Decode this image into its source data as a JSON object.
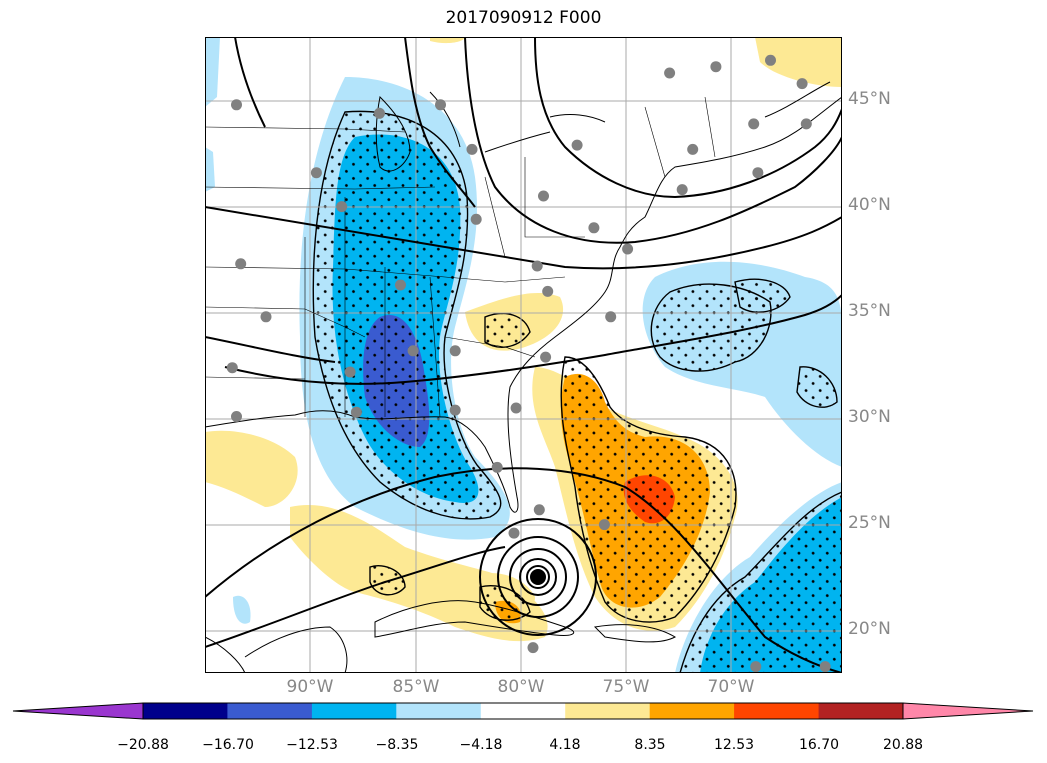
{
  "title": "2017090912 F000",
  "colors": {
    "purple": "#9a36cf",
    "navy": "#00008b",
    "royal_blue": "#3a5bd0",
    "deep_sky": "#00b4f0",
    "light_blue": "#b3e4fb",
    "white": "#ffffff",
    "pale_yellow": "#fde994",
    "orange": "#ffa500",
    "red_orange": "#ff4500",
    "firebrick": "#b22222",
    "pink": "#ff87a9",
    "station_marker": "#808080",
    "contour_line": "#000000",
    "gridline": "#aaaaaa"
  },
  "lat_labels": [
    "45°N",
    "40°N",
    "35°N",
    "30°N",
    "25°N",
    "20°N"
  ],
  "lon_labels": [
    "90°W",
    "85°W",
    "80°W",
    "75°W",
    "70°W"
  ],
  "colorbar_ticks": [
    "−20.88",
    "−16.70",
    "−12.53",
    "−8.35",
    "−4.18",
    "4.18",
    "8.35",
    "12.53",
    "16.70",
    "20.88"
  ],
  "colorbar_segment_colors": [
    "#00008b",
    "#3a5bd0",
    "#00b4f0",
    "#b3e4fb",
    "#ffffff",
    "#fde994",
    "#ffa500",
    "#ff4500",
    "#b22222"
  ],
  "colorbar_extend_colors": {
    "low": "#9a36cf",
    "high": "#ff87a9"
  },
  "map_extent": {
    "lon_min": -96.5,
    "lon_max": -66.2,
    "lat_min": 18,
    "lat_max": 48
  },
  "station_markers": [
    [
      -95,
      44.8
    ],
    [
      -88.2,
      44.4
    ],
    [
      -85.3,
      44.8
    ],
    [
      -83.8,
      42.7
    ],
    [
      -91.2,
      41.6
    ],
    [
      -90,
      40
    ],
    [
      -83.6,
      39.4
    ],
    [
      -80.4,
      40.5
    ],
    [
      -78,
      39
    ],
    [
      -76.4,
      38
    ],
    [
      -80.7,
      37.2
    ],
    [
      -94.8,
      37.3
    ],
    [
      -87.2,
      36.3
    ],
    [
      -80.2,
      36
    ],
    [
      -77.2,
      34.8
    ],
    [
      -93.6,
      34.8
    ],
    [
      -95.2,
      32.4
    ],
    [
      -89.6,
      32.2
    ],
    [
      -86.6,
      33.2
    ],
    [
      -84.6,
      33.2
    ],
    [
      -80.3,
      32.9
    ],
    [
      -95,
      30.1
    ],
    [
      -89.3,
      30.3
    ],
    [
      -84.6,
      30.4
    ],
    [
      -81.7,
      30.5
    ],
    [
      -82.6,
      27.7
    ],
    [
      -80.6,
      25.7
    ],
    [
      -81.8,
      24.6
    ],
    [
      -77.5,
      25
    ],
    [
      -80.9,
      19.2
    ],
    [
      -74.4,
      46.3
    ],
    [
      -72.2,
      46.6
    ],
    [
      -69.6,
      46.9
    ],
    [
      -68.1,
      45.8
    ],
    [
      -67.9,
      43.9
    ],
    [
      -70.4,
      43.9
    ],
    [
      -73.3,
      42.7
    ],
    [
      -78.8,
      42.9
    ],
    [
      -73.8,
      40.8
    ],
    [
      -70.2,
      41.6
    ],
    [
      -70.3,
      18.3
    ],
    [
      -67,
      18.3
    ]
  ]
}
